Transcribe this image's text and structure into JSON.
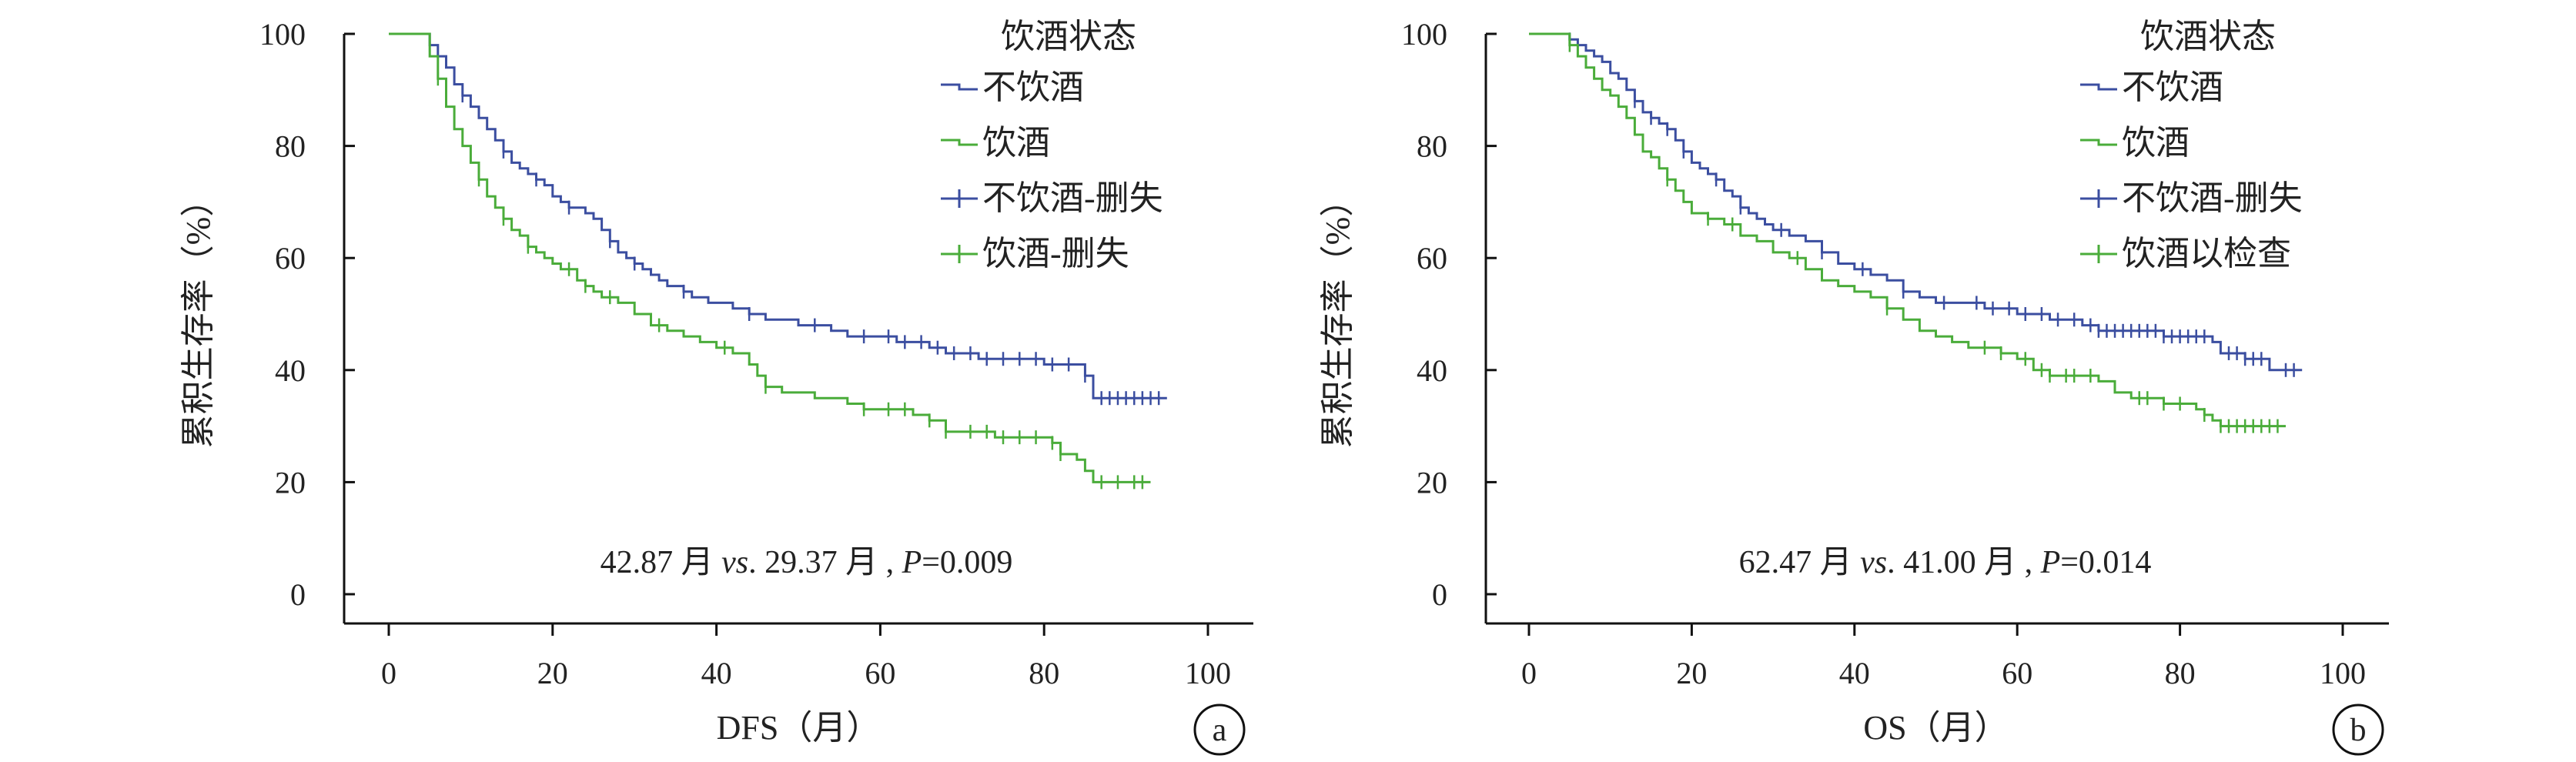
{
  "chart_data": [
    {
      "panel": "a",
      "type": "line",
      "subtype": "kaplan-meier",
      "xlabel": "DFS（月）",
      "ylabel": "累积生存率（%）",
      "xlim": [
        0,
        100
      ],
      "ylim": [
        0,
        100
      ],
      "xticks": [
        "0",
        "20",
        "40",
        "60",
        "80",
        "100"
      ],
      "yticks": [
        "0",
        "20",
        "40",
        "60",
        "80",
        "100"
      ],
      "legend_title": "饮酒状态",
      "legend_placement": "top-right",
      "legend_entries": [
        "不饮酒",
        "饮酒",
        "不饮酒-删失",
        "饮酒-删失"
      ],
      "annotation": {
        "pre": "42.87 月 ",
        "vs": "vs",
        "mid": ". 29.37 月 , ",
        "p": "P",
        "post": "=0.009"
      },
      "series": [
        {
          "name": "不饮酒",
          "color": "#3b4ea0",
          "points": [
            [
              0,
              100
            ],
            [
              4,
              100
            ],
            [
              5,
              98
            ],
            [
              6,
              96
            ],
            [
              7,
              94
            ],
            [
              8,
              91
            ],
            [
              9,
              89
            ],
            [
              10,
              87
            ],
            [
              11,
              85
            ],
            [
              12,
              83
            ],
            [
              13,
              81
            ],
            [
              14,
              79
            ],
            [
              15,
              77
            ],
            [
              16,
              76
            ],
            [
              17,
              75
            ],
            [
              18,
              74
            ],
            [
              19,
              73
            ],
            [
              20,
              71
            ],
            [
              21,
              70
            ],
            [
              22,
              69
            ],
            [
              23,
              69
            ],
            [
              24,
              68
            ],
            [
              25,
              67
            ],
            [
              26,
              65
            ],
            [
              27,
              63
            ],
            [
              28,
              61
            ],
            [
              29,
              60
            ],
            [
              30,
              59
            ],
            [
              31,
              58
            ],
            [
              32,
              57
            ],
            [
              33,
              56
            ],
            [
              34,
              55
            ],
            [
              35,
              55
            ],
            [
              36,
              54
            ],
            [
              37,
              53
            ],
            [
              38,
              53
            ],
            [
              39,
              52
            ],
            [
              40,
              52
            ],
            [
              42,
              51
            ],
            [
              44,
              50
            ],
            [
              46,
              49
            ],
            [
              48,
              49
            ],
            [
              50,
              48
            ],
            [
              52,
              48
            ],
            [
              54,
              47
            ],
            [
              56,
              46
            ],
            [
              58,
              46
            ],
            [
              60,
              46
            ],
            [
              62,
              45
            ],
            [
              64,
              45
            ],
            [
              66,
              44
            ],
            [
              68,
              43
            ],
            [
              70,
              43
            ],
            [
              72,
              42
            ],
            [
              76,
              42
            ],
            [
              80,
              41
            ],
            [
              84,
              41
            ],
            [
              85,
              39
            ],
            [
              86,
              35
            ],
            [
              95,
              35
            ]
          ],
          "censored": [
            5,
            9,
            14,
            18,
            22,
            27,
            30,
            36,
            44,
            52,
            58,
            61,
            63,
            65,
            67,
            69,
            71,
            73,
            75,
            77,
            79,
            81,
            83,
            85,
            87,
            88,
            89,
            90,
            91,
            92,
            93,
            94
          ]
        },
        {
          "name": "饮酒",
          "color": "#4aac3a",
          "points": [
            [
              0,
              100
            ],
            [
              4,
              100
            ],
            [
              5,
              96
            ],
            [
              6,
              92
            ],
            [
              7,
              87
            ],
            [
              8,
              83
            ],
            [
              9,
              80
            ],
            [
              10,
              77
            ],
            [
              11,
              74
            ],
            [
              12,
              71
            ],
            [
              13,
              69
            ],
            [
              14,
              67
            ],
            [
              15,
              65
            ],
            [
              16,
              64
            ],
            [
              17,
              62
            ],
            [
              18,
              61
            ],
            [
              19,
              60
            ],
            [
              20,
              59
            ],
            [
              21,
              58
            ],
            [
              22,
              58
            ],
            [
              23,
              56
            ],
            [
              24,
              55
            ],
            [
              25,
              54
            ],
            [
              26,
              53
            ],
            [
              28,
              52
            ],
            [
              30,
              50
            ],
            [
              32,
              48
            ],
            [
              34,
              47
            ],
            [
              36,
              46
            ],
            [
              38,
              45
            ],
            [
              40,
              44
            ],
            [
              42,
              43
            ],
            [
              43,
              43
            ],
            [
              44,
              41
            ],
            [
              45,
              39
            ],
            [
              46,
              37
            ],
            [
              48,
              36
            ],
            [
              50,
              36
            ],
            [
              52,
              35
            ],
            [
              54,
              35
            ],
            [
              56,
              34
            ],
            [
              58,
              33
            ],
            [
              60,
              33
            ],
            [
              62,
              33
            ],
            [
              64,
              32
            ],
            [
              66,
              31
            ],
            [
              68,
              29
            ],
            [
              70,
              29
            ],
            [
              72,
              29
            ],
            [
              74,
              28
            ],
            [
              76,
              28
            ],
            [
              78,
              28
            ],
            [
              80,
              28
            ],
            [
              81,
              27
            ],
            [
              82,
              25
            ],
            [
              84,
              24
            ],
            [
              85,
              22
            ],
            [
              86,
              20
            ],
            [
              93,
              20
            ]
          ],
          "censored": [
            6,
            11,
            14,
            17,
            22,
            24,
            27,
            33,
            41,
            46,
            58,
            61,
            63,
            66,
            68,
            71,
            73,
            75,
            77,
            79,
            81,
            82,
            87,
            89,
            91,
            92
          ]
        }
      ]
    },
    {
      "panel": "b",
      "type": "line",
      "subtype": "kaplan-meier",
      "xlabel": "OS（月）",
      "ylabel": "累积生存率（%）",
      "xlim": [
        0,
        100
      ],
      "ylim": [
        0,
        100
      ],
      "xticks": [
        "0",
        "20",
        "40",
        "60",
        "80",
        "100"
      ],
      "yticks": [
        "0",
        "20",
        "40",
        "60",
        "80",
        "100"
      ],
      "legend_title": "饮酒状态",
      "legend_placement": "top-right",
      "legend_entries": [
        "不饮酒",
        "饮酒",
        "不饮酒-删失",
        "饮酒以检查"
      ],
      "annotation": {
        "pre": "62.47 月 ",
        "vs": "vs",
        "mid": ". 41.00 月 , ",
        "p": "P",
        "post": "=0.014"
      },
      "series": [
        {
          "name": "不饮酒",
          "color": "#3b4ea0",
          "points": [
            [
              0,
              100
            ],
            [
              4,
              100
            ],
            [
              5,
              99
            ],
            [
              6,
              98
            ],
            [
              7,
              97
            ],
            [
              8,
              96
            ],
            [
              9,
              95
            ],
            [
              10,
              93
            ],
            [
              11,
              92
            ],
            [
              12,
              90
            ],
            [
              13,
              88
            ],
            [
              14,
              86
            ],
            [
              15,
              85
            ],
            [
              16,
              84
            ],
            [
              17,
              83
            ],
            [
              18,
              81
            ],
            [
              19,
              79
            ],
            [
              20,
              77
            ],
            [
              21,
              76
            ],
            [
              22,
              75
            ],
            [
              23,
              74
            ],
            [
              24,
              72
            ],
            [
              25,
              71
            ],
            [
              26,
              69
            ],
            [
              27,
              68
            ],
            [
              28,
              67
            ],
            [
              29,
              66
            ],
            [
              30,
              65
            ],
            [
              32,
              64
            ],
            [
              34,
              63
            ],
            [
              36,
              61
            ],
            [
              38,
              59
            ],
            [
              40,
              58
            ],
            [
              42,
              57
            ],
            [
              44,
              56
            ],
            [
              46,
              54
            ],
            [
              48,
              53
            ],
            [
              50,
              52
            ],
            [
              52,
              52
            ],
            [
              54,
              52
            ],
            [
              56,
              51
            ],
            [
              58,
              51
            ],
            [
              60,
              50
            ],
            [
              62,
              50
            ],
            [
              64,
              49
            ],
            [
              66,
              49
            ],
            [
              68,
              48
            ],
            [
              70,
              47
            ],
            [
              74,
              47
            ],
            [
              78,
              46
            ],
            [
              82,
              46
            ],
            [
              84,
              45
            ],
            [
              85,
              43
            ],
            [
              88,
              42
            ],
            [
              90,
              42
            ],
            [
              91,
              40
            ],
            [
              95,
              40
            ]
          ],
          "censored": [
            5,
            13,
            15,
            17,
            19,
            23,
            26,
            31,
            36,
            41,
            46,
            51,
            55,
            57,
            59,
            61,
            63,
            65,
            67,
            69,
            70,
            71,
            72,
            73,
            74,
            75,
            76,
            77,
            78,
            79,
            80,
            81,
            82,
            83,
            86,
            87,
            88,
            89,
            90,
            93,
            94
          ]
        },
        {
          "name": "饮酒",
          "color": "#4aac3a",
          "points": [
            [
              0,
              100
            ],
            [
              4,
              100
            ],
            [
              5,
              98
            ],
            [
              6,
              96
            ],
            [
              7,
              94
            ],
            [
              8,
              92
            ],
            [
              9,
              90
            ],
            [
              10,
              89
            ],
            [
              11,
              87
            ],
            [
              12,
              85
            ],
            [
              13,
              82
            ],
            [
              14,
              79
            ],
            [
              15,
              78
            ],
            [
              16,
              76
            ],
            [
              17,
              74
            ],
            [
              18,
              72
            ],
            [
              19,
              70
            ],
            [
              20,
              68
            ],
            [
              22,
              67
            ],
            [
              24,
              66
            ],
            [
              26,
              64
            ],
            [
              28,
              63
            ],
            [
              30,
              61
            ],
            [
              32,
              60
            ],
            [
              34,
              58
            ],
            [
              36,
              56
            ],
            [
              38,
              55
            ],
            [
              40,
              54
            ],
            [
              42,
              53
            ],
            [
              44,
              51
            ],
            [
              46,
              49
            ],
            [
              48,
              47
            ],
            [
              50,
              46
            ],
            [
              52,
              45
            ],
            [
              54,
              44
            ],
            [
              56,
              44
            ],
            [
              58,
              43
            ],
            [
              60,
              42
            ],
            [
              62,
              40
            ],
            [
              64,
              39
            ],
            [
              66,
              39
            ],
            [
              68,
              39
            ],
            [
              70,
              38
            ],
            [
              72,
              36
            ],
            [
              74,
              35
            ],
            [
              76,
              35
            ],
            [
              78,
              34
            ],
            [
              80,
              34
            ],
            [
              82,
              33
            ],
            [
              83,
              32
            ],
            [
              84,
              31
            ],
            [
              85,
              30
            ],
            [
              93,
              30
            ]
          ],
          "censored": [
            5,
            17,
            22,
            25,
            33,
            44,
            56,
            58,
            61,
            63,
            64,
            66,
            67,
            69,
            75,
            76,
            78,
            80,
            83,
            85,
            86,
            87,
            88,
            89,
            90,
            91,
            92
          ]
        }
      ]
    }
  ]
}
